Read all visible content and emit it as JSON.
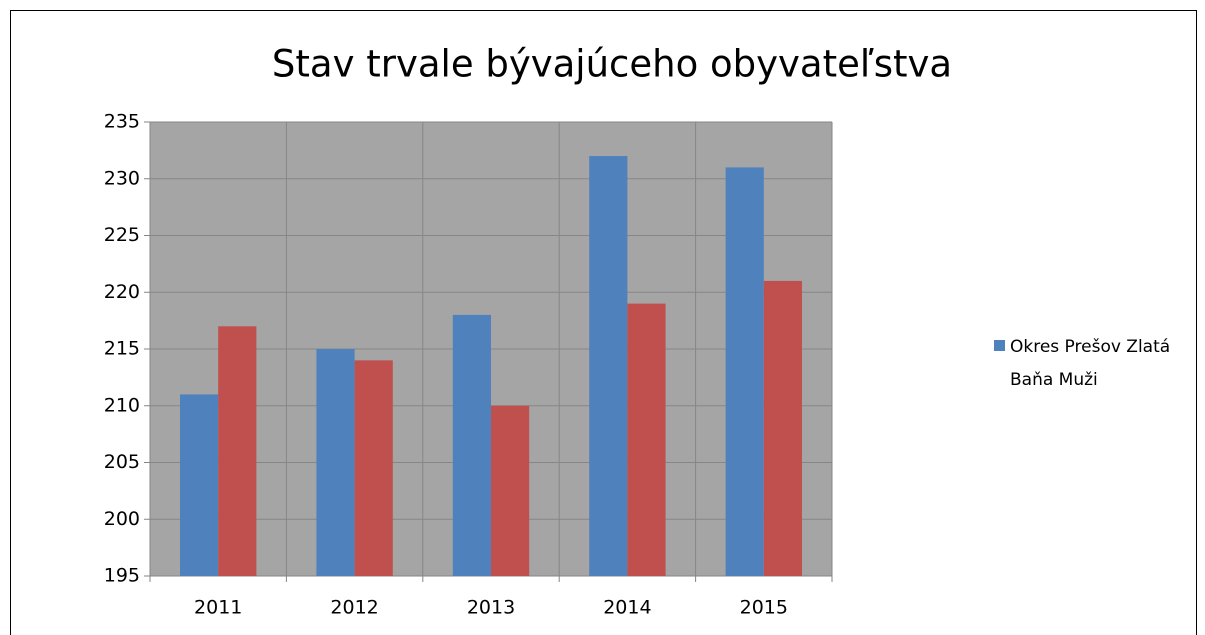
{
  "chart_data": {
    "type": "bar",
    "title": "Stav trvale bývajúceho obyvateľstva",
    "categories": [
      "2011",
      "2012",
      "2013",
      "2014",
      "2015"
    ],
    "series": [
      {
        "name": "Okres Prešov Zlatá Baňa Muži",
        "color": "#4f81bd",
        "values": [
          211,
          215,
          218,
          232,
          231
        ]
      },
      {
        "color": "#c0504d",
        "values": [
          217,
          214,
          210,
          219,
          221
        ]
      }
    ],
    "ylim": [
      195,
      235
    ],
    "yticks": [
      195,
      200,
      205,
      210,
      215,
      220,
      225,
      230,
      235
    ],
    "grid": true,
    "legend": "right"
  }
}
